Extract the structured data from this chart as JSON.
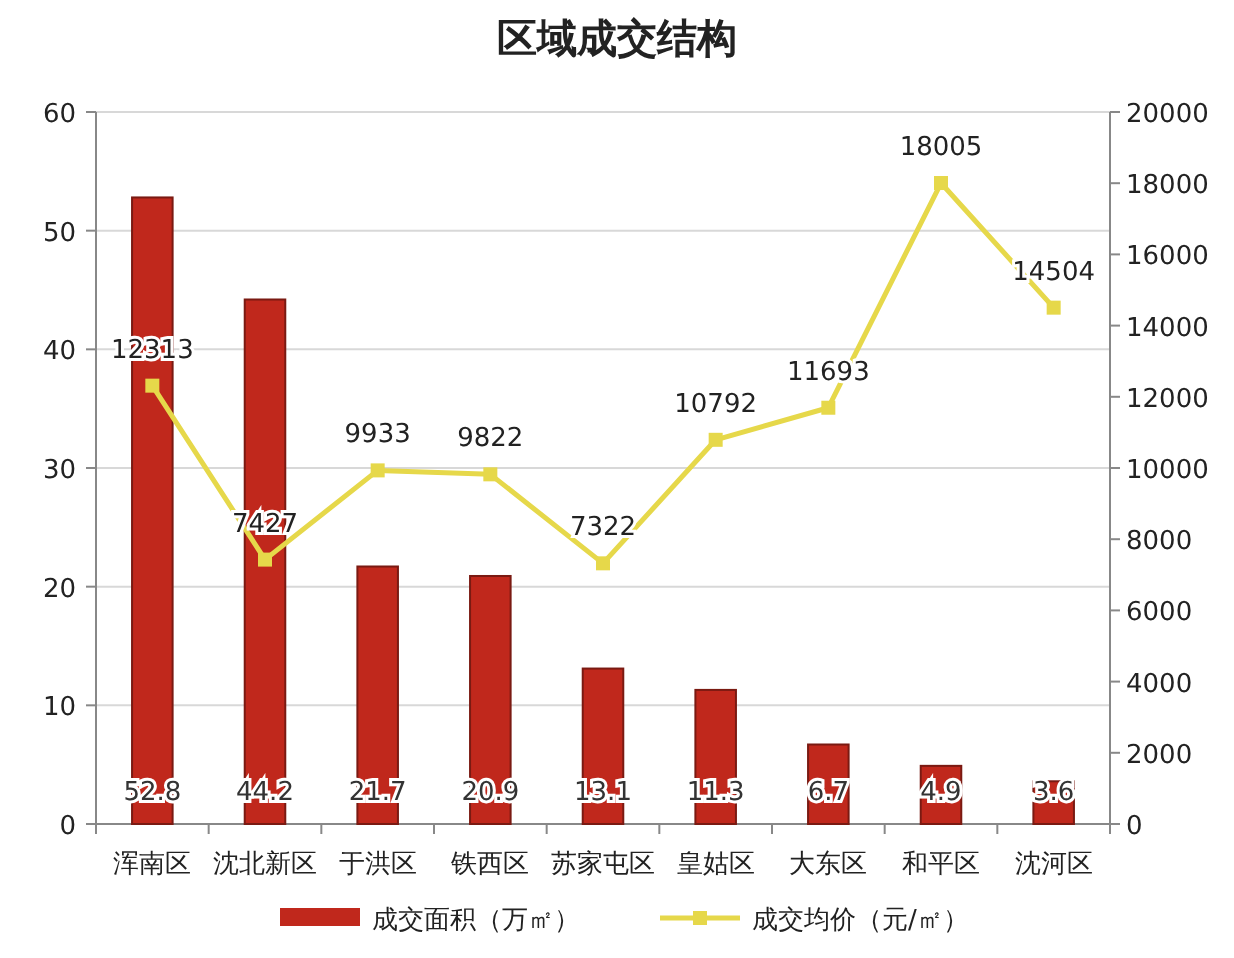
{
  "chart_data": {
    "type": "bar",
    "title": "区域成交结构",
    "categories": [
      "浑南区",
      "沈北新区",
      "于洪区",
      "铁西区",
      "苏家屯区",
      "皇姑区",
      "大东区",
      "和平区",
      "沈河区"
    ],
    "series": [
      {
        "name": "成交面积（万㎡）",
        "color": "#c0281c",
        "values": [
          52.8,
          44.2,
          21.7,
          20.9,
          13.1,
          11.3,
          6.7,
          4.9,
          3.6
        ]
      },
      {
        "name": "成交均价（元/㎡）",
        "type": "line",
        "axis": "y2",
        "color": "#e6d84a",
        "marker": "square",
        "values": [
          12313,
          7427,
          9933,
          9822,
          7322,
          10792,
          11693,
          18005,
          14504
        ]
      }
    ],
    "ylim": [
      0,
      60
    ],
    "yticks": [
      0,
      10,
      20,
      30,
      40,
      50,
      60
    ],
    "y2lim": [
      0,
      20000
    ],
    "y2ticks": [
      0,
      2000,
      4000,
      6000,
      8000,
      10000,
      12000,
      14000,
      16000,
      18000,
      20000
    ],
    "grid": "y",
    "legend": "bottom",
    "data_labels": true
  }
}
